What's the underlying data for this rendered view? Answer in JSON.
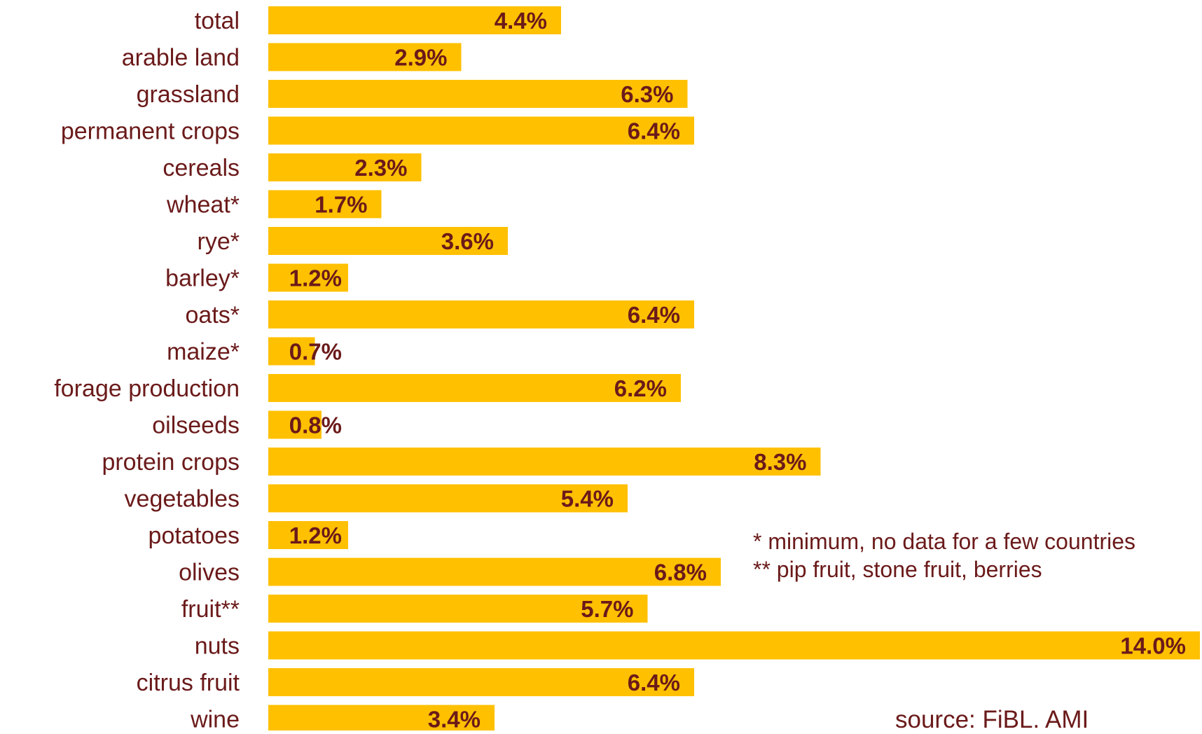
{
  "chart_data": {
    "type": "bar",
    "orientation": "horizontal",
    "categories": [
      "total",
      "arable land",
      "grassland",
      "permanent crops",
      "cereals",
      "wheat*",
      "rye*",
      "barley*",
      "oats*",
      "maize*",
      "forage production",
      "oilseeds",
      "protein crops",
      "vegetables",
      "potatoes",
      "olives",
      "fruit**",
      "nuts",
      "citrus fruit",
      "wine"
    ],
    "values": [
      4.4,
      2.9,
      6.3,
      6.4,
      2.3,
      1.7,
      3.6,
      1.2,
      6.4,
      0.7,
      6.2,
      0.8,
      8.3,
      5.4,
      1.2,
      6.8,
      5.7,
      14.0,
      6.4,
      3.4
    ],
    "value_labels": [
      "4.4%",
      "2.9%",
      "6.3%",
      "6.4%",
      "2.3%",
      "1.7%",
      "3.6%",
      "1.2%",
      "6.4%",
      "0.7%",
      "6.2%",
      "0.8%",
      "8.3%",
      "5.4%",
      "1.2%",
      "6.8%",
      "5.7%",
      "14.0%",
      "6.4%",
      "3.4%"
    ],
    "xlim": [
      0,
      14.0
    ],
    "grid": false,
    "bar_color": "#ffc000",
    "text_color": "#6b1a1a"
  },
  "notes": {
    "line1": "* minimum, no data for a few countries",
    "line2": "** pip fruit, stone fruit, berries"
  },
  "source": "source: FiBL. AMI"
}
